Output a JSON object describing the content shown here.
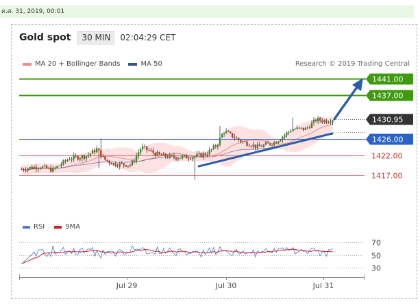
{
  "header": {
    "date_stamp": "ค.ศ. 31, 2019, 00:01",
    "title": "Gold spot",
    "interval": "30 MIN",
    "time": "02:04:29 CET"
  },
  "legend": {
    "ma20_label": "MA 20 + Bollinger Bands",
    "ma50_label": "MA 50",
    "credit": "Research © 2019 Trading Central",
    "rsi_label": "RSI",
    "ma9_label": "9MA"
  },
  "colors": {
    "resistance": "#3f9a0f",
    "support_blue": "#2a62c8",
    "support_red": "#e37b7b",
    "current_tag": "#333333",
    "arrow": "#2a5ea8",
    "candle_up": "#3a8a2e",
    "candle_down": "#c0392b",
    "bollinger": "#ffdcdc",
    "ma20": "#e98c8c",
    "ma50": "#33558f",
    "rsi": "#4a7ad2",
    "ma9": "#d02020"
  },
  "chart_data": {
    "type": "candlestick",
    "title": "Gold spot",
    "x_ticks": [
      "Jul 29",
      "Jul 30",
      "Jul 31"
    ],
    "price_range": [
      1413.5,
      1443.5
    ],
    "levels": [
      {
        "value": 1441.0,
        "label": "1441.00",
        "style": "resistance",
        "kind": "line-tag"
      },
      {
        "value": 1437.0,
        "label": "1437.00",
        "style": "resistance",
        "kind": "line-tag"
      },
      {
        "value": 1430.95,
        "label": "1430.95",
        "style": "current",
        "kind": "dotted-tag"
      },
      {
        "value": 1426.0,
        "label": "1426.00",
        "style": "support_blue",
        "kind": "line-tag"
      },
      {
        "value": 1422.0,
        "label": "1422.00",
        "style": "support_red",
        "kind": "line-text"
      },
      {
        "value": 1417.0,
        "label": "1417.00",
        "style": "support_red",
        "kind": "line-text"
      }
    ],
    "series": [
      {
        "name": "MA 20 + Bollinger Bands",
        "kind": "band"
      },
      {
        "name": "MA 50",
        "kind": "line"
      }
    ],
    "rsi": {
      "levels": [
        70,
        50,
        30
      ],
      "range": [
        25,
        75
      ],
      "series": [
        {
          "name": "RSI"
        },
        {
          "name": "9MA"
        }
      ]
    }
  }
}
